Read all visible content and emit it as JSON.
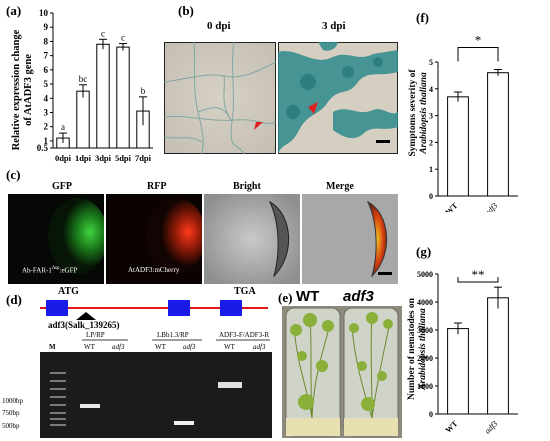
{
  "panels": {
    "a": {
      "label": "(a)",
      "ylabel": "Relative expression change of AtADF3 gene",
      "ylabel_line1": "Relative expression change",
      "ylabel_line2": "of AtADF3 gene"
    },
    "b": {
      "label": "(b)",
      "left_title": "0 dpi",
      "right_title": "3 dpi"
    },
    "c": {
      "label": "(c)",
      "titles": [
        "GFP",
        "RFP",
        "Bright",
        "Merge"
      ],
      "caption_gfp": "Ab-FAR-1",
      "caption_gfp_sup": "Δsp",
      "caption_gfp_tail": ":eGFP",
      "caption_rfp": "AtADF3:mCherry"
    },
    "d": {
      "label": "(d)",
      "atg": "ATG",
      "tga": "TGA",
      "mutant": "adf3(Salk_139265)",
      "lane_marker": "M",
      "groups": [
        {
          "name": "LP/RP",
          "lanes": [
            "WT",
            "adf3"
          ]
        },
        {
          "name": "LBb1.3/RP",
          "lanes": [
            "WT",
            "adf3"
          ]
        },
        {
          "name": "ADF3-F/ADF3-R",
          "lanes": [
            "WT",
            "adf3"
          ]
        }
      ],
      "ladder": [
        "1000bp",
        "750bp",
        "500bp"
      ]
    },
    "e": {
      "label": "(e)",
      "left": "WT",
      "right": "adf3"
    },
    "f": {
      "label": "(f)",
      "ylabel_line1": "Symptoms severity of",
      "ylabel_line2": "Arabidopsis thaliana",
      "significance": "*"
    },
    "g": {
      "label": "(g)",
      "ylabel_line1": "Number of nematodes on",
      "ylabel_line2": "Arabidopsis thaliana",
      "significance": "**"
    }
  },
  "chart_data": [
    {
      "type": "bar",
      "panel": "a",
      "title": "",
      "xlabel": "",
      "ylabel": "Relative expression change of AtADF3 gene",
      "categories": [
        "0dpi",
        "1dpi",
        "3dpi",
        "5dpi",
        "7dpi"
      ],
      "values": [
        1.2,
        4.5,
        7.8,
        7.6,
        3.1
      ],
      "errors": [
        0.35,
        0.45,
        0.35,
        0.25,
        1.0
      ],
      "letters": [
        "a",
        "bc",
        "c",
        "c",
        "b"
      ],
      "ylim": [
        0.5,
        10
      ],
      "yticks": [
        "0.5",
        "1",
        "2",
        "3",
        "4",
        "5",
        "6",
        "7",
        "8",
        "9",
        "10"
      ],
      "grid": false
    },
    {
      "type": "bar",
      "panel": "f",
      "title": "",
      "xlabel": "",
      "ylabel": "Symptoms severity of Arabidopsis thaliana",
      "categories": [
        "WT",
        "adf3"
      ],
      "values": [
        3.7,
        4.6
      ],
      "errors": [
        0.18,
        0.12
      ],
      "ylim": [
        0,
        5
      ],
      "yticks": [
        "0",
        "1",
        "2",
        "3",
        "4",
        "5"
      ],
      "grid": false
    },
    {
      "type": "bar",
      "panel": "g",
      "title": "",
      "xlabel": "",
      "ylabel": "Number of nematodes on Arabidopsis thaliana",
      "categories": [
        "WT",
        "adf3"
      ],
      "values": [
        3050,
        4150
      ],
      "errors": [
        200,
        380
      ],
      "ylim": [
        0,
        5000
      ],
      "yticks": [
        "0",
        "1000",
        "2000",
        "3000",
        "4000",
        "5000"
      ],
      "grid": false
    }
  ]
}
